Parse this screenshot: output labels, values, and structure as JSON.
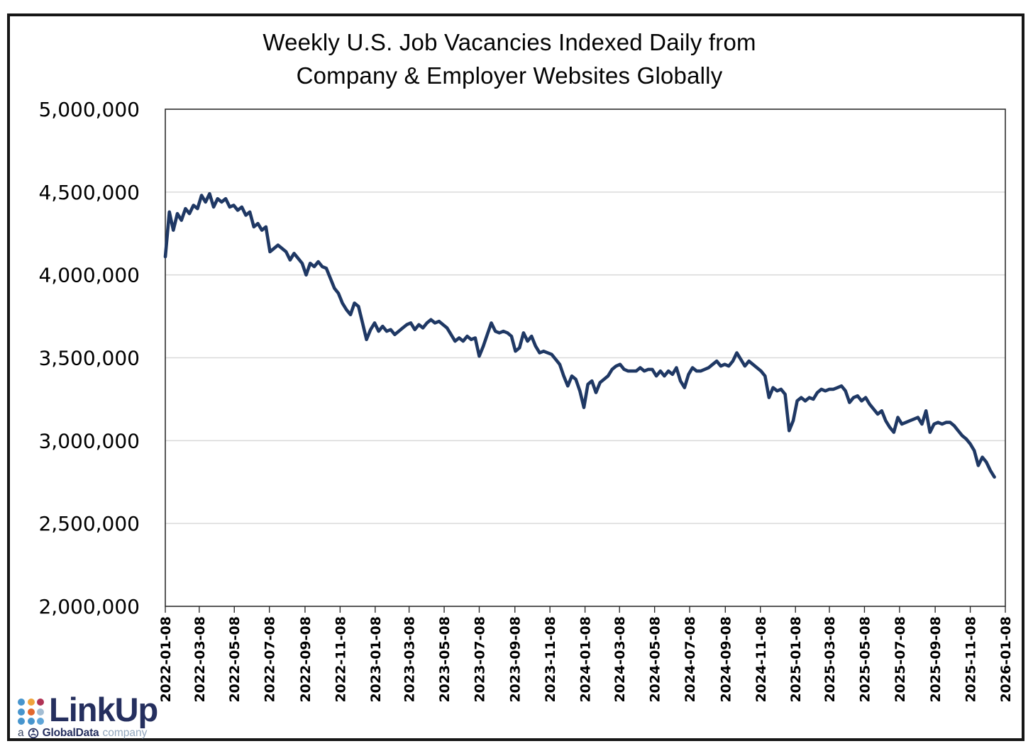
{
  "title": {
    "line1": "Weekly U.S. Job Vacancies Indexed Daily from",
    "line2": "Company & Employer Websites Globally"
  },
  "chart_data": {
    "type": "line",
    "title": "Weekly U.S. Job Vacancies Indexed Daily from Company & Employer Websites Globally",
    "xlabel": "",
    "ylabel": "",
    "legend": "none",
    "grid": "horizontal",
    "xlim": [
      "2022-01-08",
      "2026-01-08"
    ],
    "ylim": [
      2000000,
      5000000
    ],
    "line_color": "#1f3864",
    "y_tick_values": [
      5000000,
      4500000,
      4000000,
      3500000,
      3000000,
      2500000,
      2000000
    ],
    "y_tick_labels": [
      "5,000,000",
      "4,500,000",
      "4,000,000",
      "3,500,000",
      "3,000,000",
      "2,500,000",
      "2,000,000"
    ],
    "y_gridline_values": [
      4500000,
      4000000,
      3500000,
      3000000,
      2500000
    ],
    "x_tick_labels": [
      "2022-01-08",
      "2022-03-08",
      "2022-05-08",
      "2022-07-08",
      "2022-09-08",
      "2022-11-08",
      "2023-01-08",
      "2023-03-08",
      "2023-05-08",
      "2023-07-08",
      "2023-09-08",
      "2023-11-08",
      "2024-01-08",
      "2024-03-08",
      "2024-05-08",
      "2024-07-08",
      "2024-09-08",
      "2024-11-08",
      "2025-01-08",
      "2025-03-08",
      "2025-05-08",
      "2025-07-08",
      "2025-09-08",
      "2025-11-08",
      "2026-01-08"
    ],
    "series": [
      {
        "name": "Weekly U.S. job vacancies",
        "dates": [
          "2022-01-08",
          "2022-01-15",
          "2022-01-22",
          "2022-01-29",
          "2022-02-05",
          "2022-02-12",
          "2022-02-19",
          "2022-02-26",
          "2022-03-05",
          "2022-03-12",
          "2022-03-19",
          "2022-03-26",
          "2022-04-02",
          "2022-04-09",
          "2022-04-16",
          "2022-04-23",
          "2022-04-30",
          "2022-05-07",
          "2022-05-14",
          "2022-05-21",
          "2022-05-28",
          "2022-06-04",
          "2022-06-11",
          "2022-06-18",
          "2022-06-25",
          "2022-07-02",
          "2022-07-09",
          "2022-07-16",
          "2022-07-23",
          "2022-07-30",
          "2022-08-06",
          "2022-08-13",
          "2022-08-20",
          "2022-08-27",
          "2022-09-03",
          "2022-09-10",
          "2022-09-17",
          "2022-09-24",
          "2022-10-01",
          "2022-10-08",
          "2022-10-15",
          "2022-10-22",
          "2022-10-29",
          "2022-11-05",
          "2022-11-12",
          "2022-11-19",
          "2022-11-26",
          "2022-12-03",
          "2022-12-10",
          "2022-12-17",
          "2022-12-24",
          "2022-12-31",
          "2023-01-07",
          "2023-01-14",
          "2023-01-21",
          "2023-01-28",
          "2023-02-04",
          "2023-02-11",
          "2023-02-18",
          "2023-02-25",
          "2023-03-04",
          "2023-03-11",
          "2023-03-18",
          "2023-03-25",
          "2023-04-01",
          "2023-04-08",
          "2023-04-15",
          "2023-04-22",
          "2023-04-29",
          "2023-05-06",
          "2023-05-13",
          "2023-05-20",
          "2023-05-27",
          "2023-06-03",
          "2023-06-10",
          "2023-06-17",
          "2023-06-24",
          "2023-07-01",
          "2023-07-08",
          "2023-07-15",
          "2023-07-22",
          "2023-07-29",
          "2023-08-05",
          "2023-08-12",
          "2023-08-19",
          "2023-08-26",
          "2023-09-02",
          "2023-09-09",
          "2023-09-16",
          "2023-09-23",
          "2023-09-30",
          "2023-10-07",
          "2023-10-14",
          "2023-10-21",
          "2023-10-28",
          "2023-11-04",
          "2023-11-11",
          "2023-11-18",
          "2023-11-25",
          "2023-12-02",
          "2023-12-09",
          "2023-12-16",
          "2023-12-23",
          "2023-12-30",
          "2024-01-06",
          "2024-01-13",
          "2024-01-20",
          "2024-01-27",
          "2024-02-03",
          "2024-02-10",
          "2024-02-17",
          "2024-02-24",
          "2024-03-02",
          "2024-03-09",
          "2024-03-16",
          "2024-03-23",
          "2024-03-30",
          "2024-04-06",
          "2024-04-13",
          "2024-04-20",
          "2024-04-27",
          "2024-05-04",
          "2024-05-11",
          "2024-05-18",
          "2024-05-25",
          "2024-06-01",
          "2024-06-08",
          "2024-06-15",
          "2024-06-22",
          "2024-06-29",
          "2024-07-06",
          "2024-07-13",
          "2024-07-20",
          "2024-07-27",
          "2024-08-03",
          "2024-08-10",
          "2024-08-17",
          "2024-08-24",
          "2024-08-31",
          "2024-09-07",
          "2024-09-14",
          "2024-09-21",
          "2024-09-28",
          "2024-10-05",
          "2024-10-12",
          "2024-10-19",
          "2024-10-26",
          "2024-11-02",
          "2024-11-09",
          "2024-11-16",
          "2024-11-23",
          "2024-11-30",
          "2024-12-07",
          "2024-12-14",
          "2024-12-21",
          "2024-12-28",
          "2025-01-04",
          "2025-01-11",
          "2025-01-18",
          "2025-01-25",
          "2025-02-01",
          "2025-02-08",
          "2025-02-15",
          "2025-02-22",
          "2025-03-01",
          "2025-03-08",
          "2025-03-15",
          "2025-03-22",
          "2025-03-29",
          "2025-04-05",
          "2025-04-12",
          "2025-04-19",
          "2025-04-26",
          "2025-05-03",
          "2025-05-10",
          "2025-05-17",
          "2025-05-24",
          "2025-05-31",
          "2025-06-07",
          "2025-06-14",
          "2025-06-21",
          "2025-06-28",
          "2025-07-05",
          "2025-07-12",
          "2025-07-19",
          "2025-07-26",
          "2025-08-02",
          "2025-08-09",
          "2025-08-16",
          "2025-08-23",
          "2025-08-30",
          "2025-09-06",
          "2025-09-13",
          "2025-09-20",
          "2025-09-27",
          "2025-10-04",
          "2025-10-11",
          "2025-10-18",
          "2025-10-25",
          "2025-11-01",
          "2025-11-08",
          "2025-11-15",
          "2025-11-22",
          "2025-11-29",
          "2025-12-06",
          "2025-12-13",
          "2025-12-20"
        ],
        "values": [
          4110000,
          4380000,
          4270000,
          4370000,
          4330000,
          4400000,
          4370000,
          4420000,
          4400000,
          4480000,
          4440000,
          4490000,
          4410000,
          4460000,
          4440000,
          4460000,
          4410000,
          4420000,
          4390000,
          4410000,
          4360000,
          4380000,
          4290000,
          4310000,
          4270000,
          4290000,
          4140000,
          4160000,
          4180000,
          4160000,
          4140000,
          4090000,
          4130000,
          4100000,
          4070000,
          4000000,
          4070000,
          4050000,
          4080000,
          4050000,
          4040000,
          3980000,
          3920000,
          3890000,
          3830000,
          3790000,
          3760000,
          3830000,
          3810000,
          3710000,
          3610000,
          3670000,
          3710000,
          3660000,
          3690000,
          3660000,
          3670000,
          3640000,
          3660000,
          3680000,
          3700000,
          3710000,
          3670000,
          3700000,
          3680000,
          3710000,
          3730000,
          3710000,
          3720000,
          3700000,
          3680000,
          3640000,
          3600000,
          3620000,
          3600000,
          3630000,
          3610000,
          3620000,
          3510000,
          3570000,
          3640000,
          3710000,
          3660000,
          3650000,
          3660000,
          3650000,
          3630000,
          3540000,
          3560000,
          3650000,
          3600000,
          3630000,
          3570000,
          3530000,
          3540000,
          3530000,
          3520000,
          3490000,
          3460000,
          3390000,
          3330000,
          3390000,
          3370000,
          3300000,
          3200000,
          3340000,
          3360000,
          3290000,
          3350000,
          3370000,
          3390000,
          3430000,
          3450000,
          3460000,
          3430000,
          3420000,
          3420000,
          3420000,
          3440000,
          3420000,
          3430000,
          3430000,
          3390000,
          3420000,
          3390000,
          3420000,
          3400000,
          3440000,
          3360000,
          3320000,
          3400000,
          3440000,
          3420000,
          3420000,
          3430000,
          3440000,
          3460000,
          3480000,
          3450000,
          3460000,
          3450000,
          3480000,
          3530000,
          3490000,
          3450000,
          3480000,
          3460000,
          3440000,
          3420000,
          3390000,
          3260000,
          3320000,
          3300000,
          3310000,
          3280000,
          3060000,
          3120000,
          3240000,
          3260000,
          3240000,
          3260000,
          3250000,
          3290000,
          3310000,
          3300000,
          3310000,
          3310000,
          3320000,
          3330000,
          3300000,
          3230000,
          3260000,
          3270000,
          3240000,
          3260000,
          3220000,
          3190000,
          3160000,
          3180000,
          3120000,
          3080000,
          3050000,
          3140000,
          3100000,
          3110000,
          3120000,
          3130000,
          3140000,
          3100000,
          3180000,
          3050000,
          3100000,
          3110000,
          3100000,
          3110000,
          3110000,
          3090000,
          3060000,
          3030000,
          3010000,
          2980000,
          2940000,
          2850000,
          2900000,
          2870000,
          2820000,
          2780000
        ]
      }
    ]
  },
  "logo": {
    "brand": "LinkUp",
    "tagline_prefix": "a",
    "tagline_brand": "GlobalData",
    "tagline_suffix": "company",
    "dot_colors": [
      "#4795cd",
      "#f0a43c",
      "#b03355",
      "#4795cd",
      "#e2672d",
      "#a3bdd3",
      "#4795cd",
      "#4795cd",
      "#5ea5d8"
    ],
    "wordmark_color": "#252f5e"
  }
}
